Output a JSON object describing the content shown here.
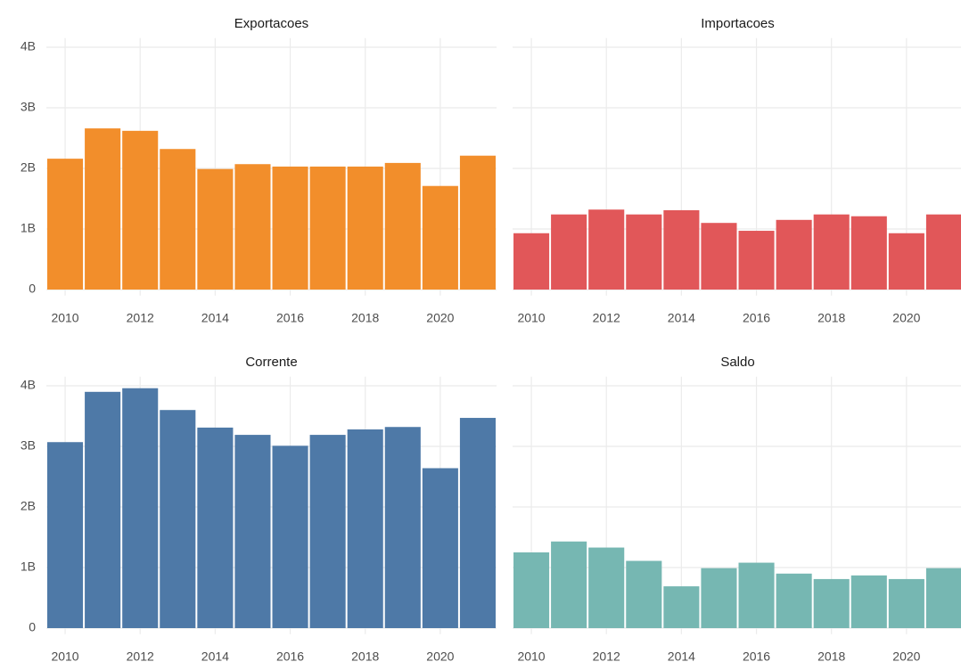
{
  "chart_data": [
    {
      "type": "bar",
      "title": "Exportacoes",
      "color": "#f28e2b",
      "x": [
        2010,
        2011,
        2012,
        2013,
        2014,
        2015,
        2016,
        2017,
        2018,
        2019,
        2020,
        2021
      ],
      "values": [
        2.16,
        2.66,
        2.62,
        2.32,
        1.99,
        2.07,
        2.03,
        2.03,
        2.03,
        2.09,
        1.71,
        2.21
      ],
      "xlim": [
        2009.5,
        2021.5
      ],
      "xticks": [
        2010,
        2012,
        2014,
        2016,
        2018,
        2020
      ],
      "ylim": [
        -0.1,
        4.15
      ],
      "yticks": [
        0,
        {
          "value": 1,
          "label": "1B"
        },
        {
          "value": 2,
          "label": "2B"
        },
        {
          "value": 3,
          "label": "3B"
        },
        {
          "value": 4,
          "label": "4B"
        }
      ],
      "grid": true
    },
    {
      "type": "bar",
      "title": "Importacoes",
      "color": "#e15759",
      "x": [
        2010,
        2011,
        2012,
        2013,
        2014,
        2015,
        2016,
        2017,
        2018,
        2019,
        2020,
        2021
      ],
      "values": [
        0.93,
        1.24,
        1.32,
        1.24,
        1.31,
        1.1,
        0.97,
        1.15,
        1.24,
        1.21,
        0.93,
        1.24
      ],
      "xlim": [
        2009.5,
        2021.5
      ],
      "xticks": [
        2010,
        2012,
        2014,
        2016,
        2018,
        2020
      ],
      "ylim": [
        -0.1,
        4.15
      ],
      "yticks": [
        0,
        1,
        2,
        3,
        4
      ],
      "grid": true
    },
    {
      "type": "bar",
      "title": "Corrente",
      "color": "#4e79a7",
      "x": [
        2010,
        2011,
        2012,
        2013,
        2014,
        2015,
        2016,
        2017,
        2018,
        2019,
        2020,
        2021
      ],
      "values": [
        3.07,
        3.9,
        3.96,
        3.6,
        3.31,
        3.19,
        3.01,
        3.19,
        3.28,
        3.32,
        2.64,
        3.47
      ],
      "xlim": [
        2009.5,
        2021.5
      ],
      "xticks": [
        2010,
        2012,
        2014,
        2016,
        2018,
        2020
      ],
      "ylim": [
        -0.1,
        4.15
      ],
      "yticks": [
        0,
        {
          "value": 1,
          "label": "1B"
        },
        {
          "value": 2,
          "label": "2B"
        },
        {
          "value": 3,
          "label": "3B"
        },
        {
          "value": 4,
          "label": "4B"
        }
      ],
      "grid": true
    },
    {
      "type": "bar",
      "title": "Saldo",
      "color": "#76b7b2",
      "x": [
        2010,
        2011,
        2012,
        2013,
        2014,
        2015,
        2016,
        2017,
        2018,
        2019,
        2020,
        2021
      ],
      "values": [
        1.25,
        1.43,
        1.33,
        1.11,
        0.69,
        0.99,
        1.08,
        0.9,
        0.81,
        0.87,
        0.81,
        0.99
      ],
      "xlim": [
        2009.5,
        2021.5
      ],
      "xticks": [
        2010,
        2012,
        2014,
        2016,
        2018,
        2020
      ],
      "ylim": [
        -0.1,
        4.15
      ],
      "yticks": [
        0,
        1,
        2,
        3,
        4
      ],
      "grid": true
    }
  ]
}
